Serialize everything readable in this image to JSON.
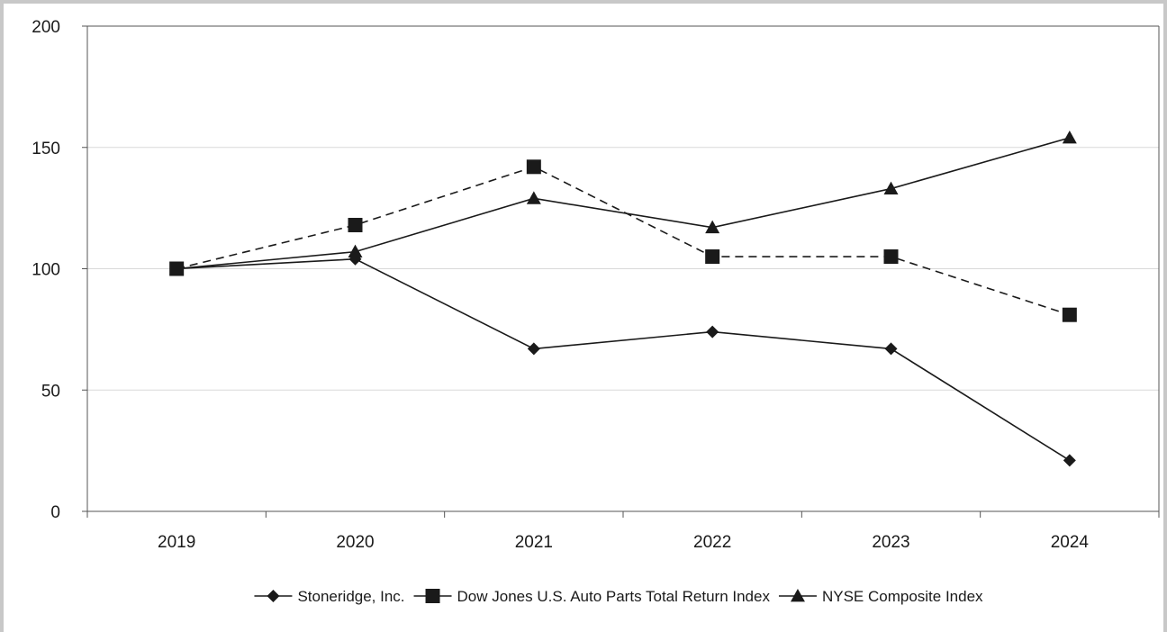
{
  "chart_data": {
    "type": "line",
    "categories": [
      "2019",
      "2020",
      "2021",
      "2022",
      "2023",
      "2024"
    ],
    "ylim": [
      0,
      200
    ],
    "yticks": [
      0,
      50,
      100,
      150,
      200
    ],
    "grid": true,
    "legend_position": "bottom",
    "series": [
      {
        "name": "Stoneridge, Inc.",
        "marker": "diamond",
        "dash": "solid",
        "color": "#1a1a1a",
        "values": [
          100,
          104,
          67,
          74,
          67,
          21
        ]
      },
      {
        "name": "Dow Jones U.S. Auto Parts Total Return Index",
        "marker": "square",
        "dash": "dashed",
        "color": "#1a1a1a",
        "values": [
          100,
          118,
          142,
          105,
          105,
          81
        ]
      },
      {
        "name": "NYSE Composite Index",
        "marker": "triangle",
        "dash": "solid",
        "color": "#1a1a1a",
        "values": [
          100,
          107,
          129,
          117,
          133,
          154
        ]
      }
    ]
  }
}
